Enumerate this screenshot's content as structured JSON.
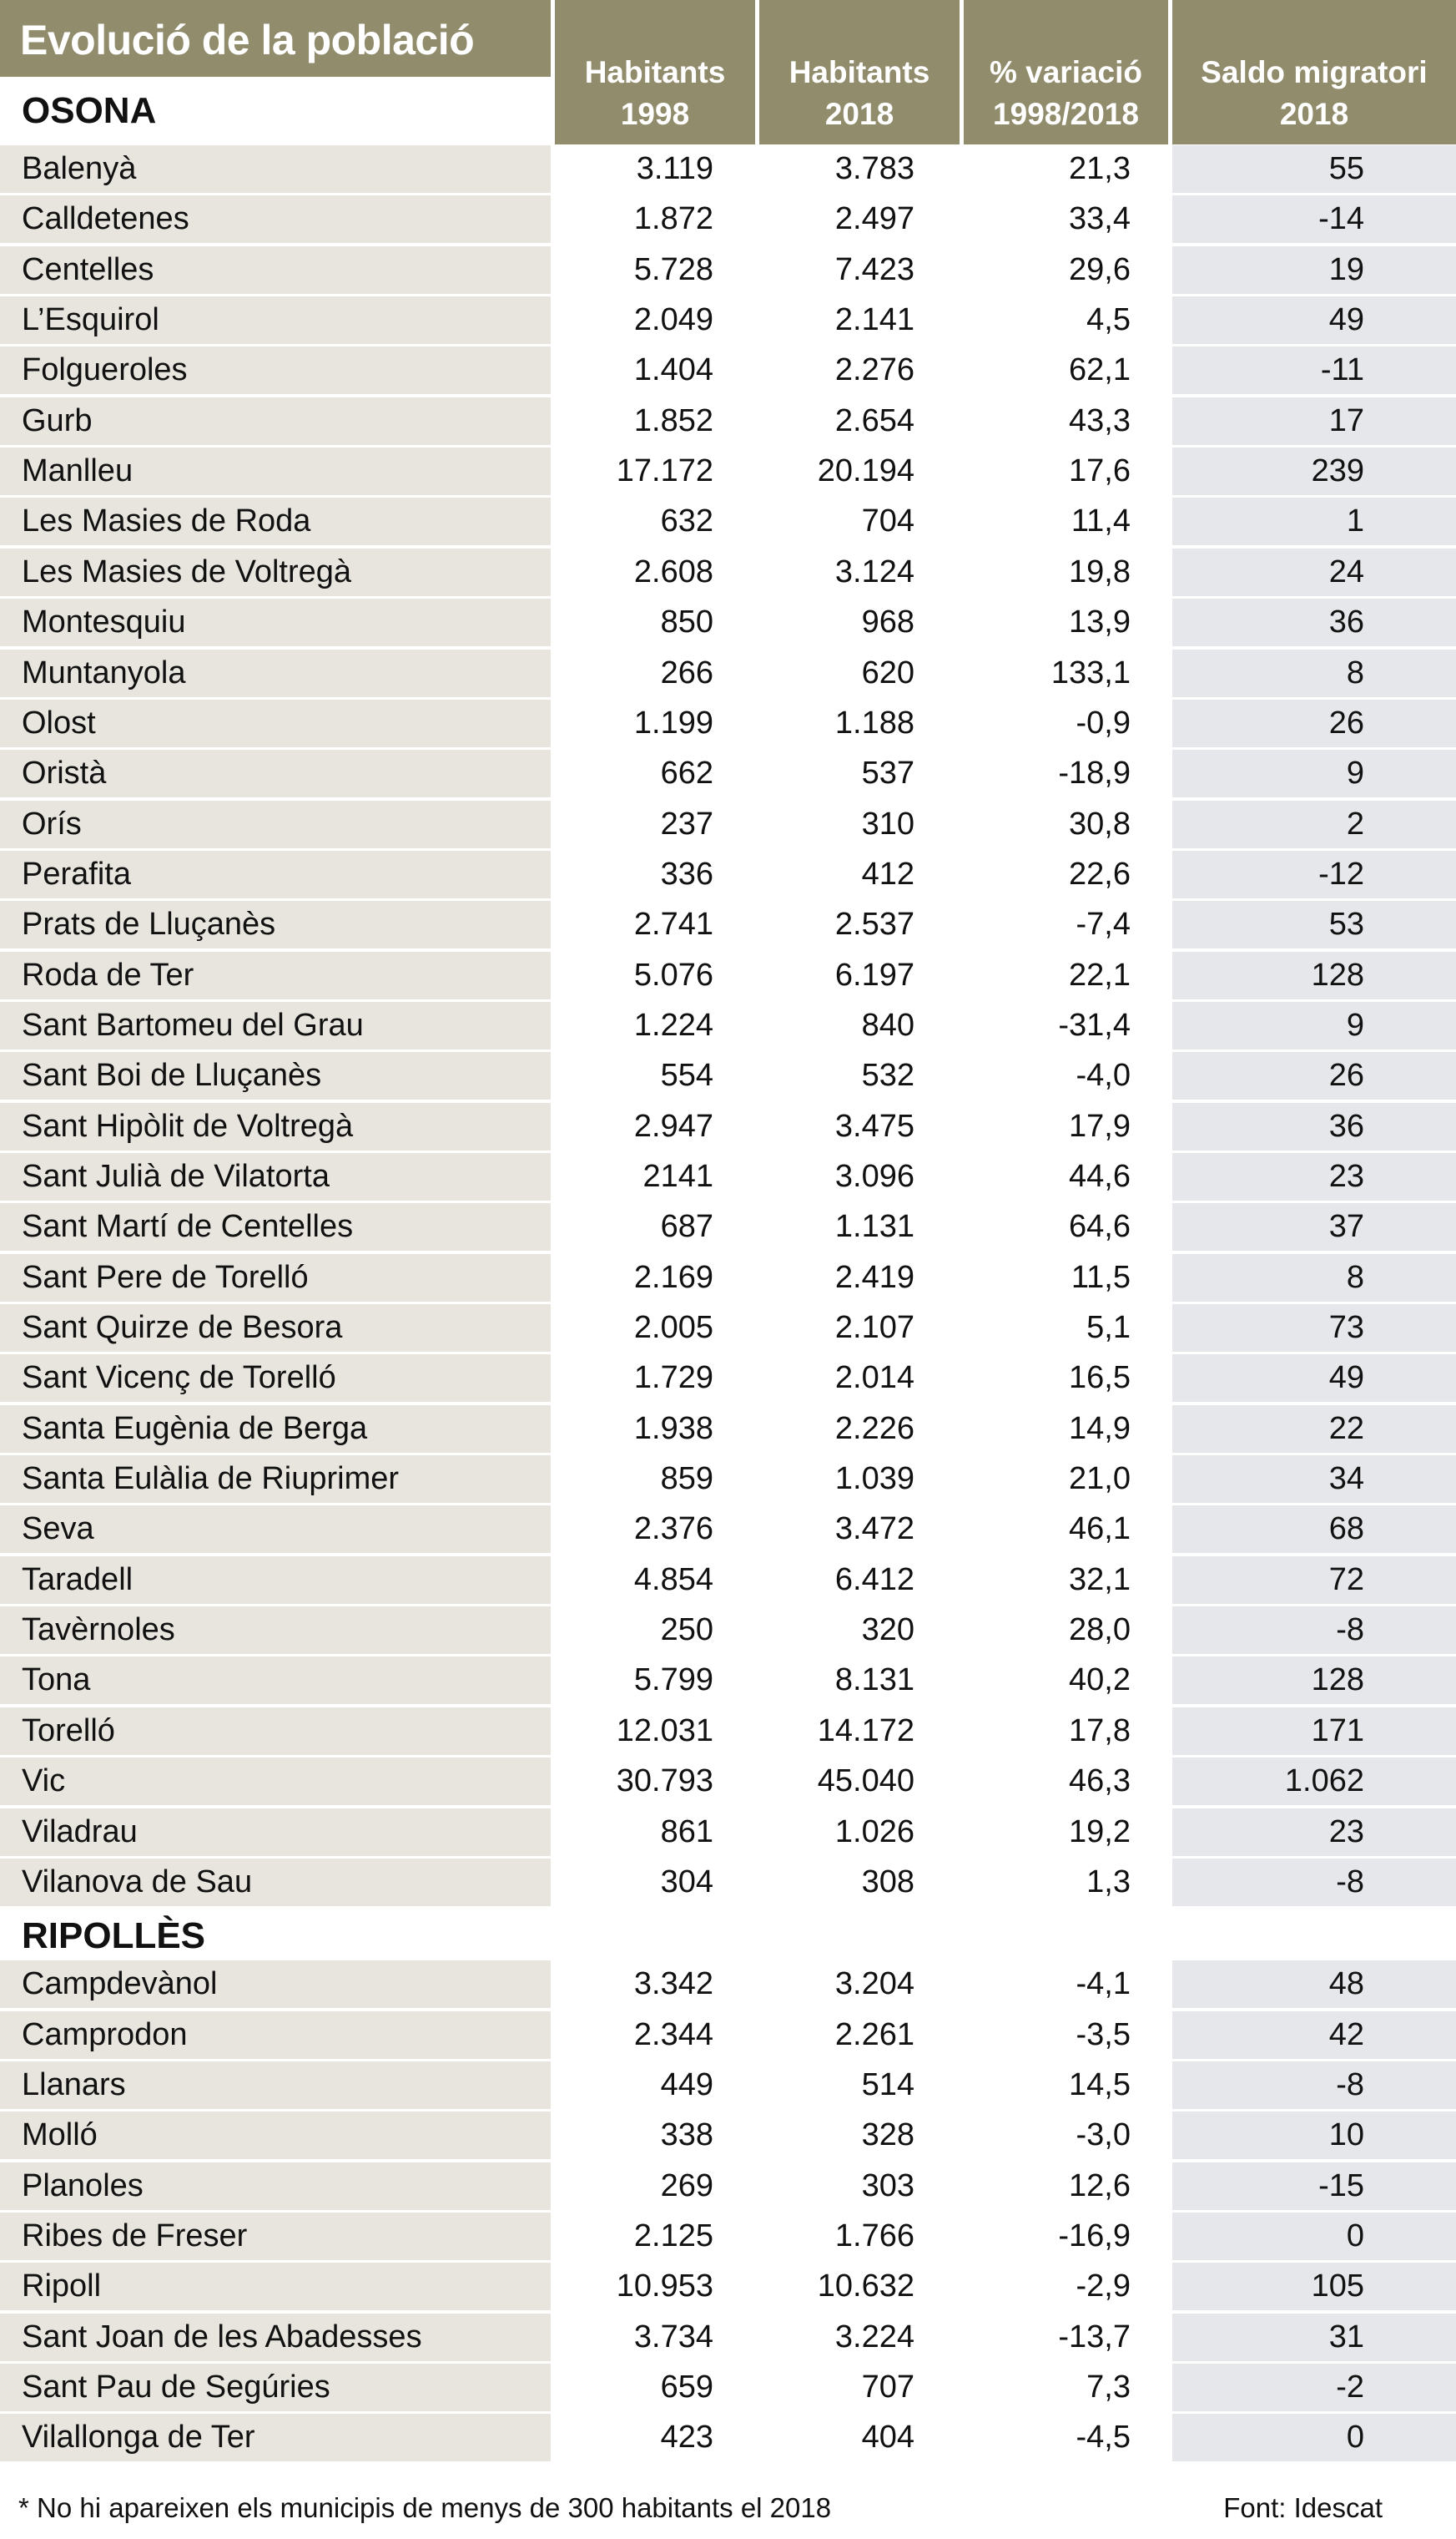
{
  "title": "Evolució de la població",
  "colors": {
    "header": "#918c6c",
    "row_light": "#e7e5dd",
    "migr_light": "#e6e7ea"
  },
  "chart_data": {
    "type": "table",
    "title": "Evolució de la població",
    "columns": [
      {
        "line1": "Habitants",
        "line2": "1998"
      },
      {
        "line1": "Habitants",
        "line2": "2018"
      },
      {
        "line1": "% variació",
        "line2": "1998/2018"
      },
      {
        "line1": "Saldo migratori",
        "line2": "2018"
      }
    ],
    "regions": [
      {
        "name": "OSONA",
        "rows": [
          [
            "Balenyà",
            "3.119",
            "3.783",
            "21,3",
            "55"
          ],
          [
            "Calldetenes",
            "1.872",
            "2.497",
            "33,4",
            "-14"
          ],
          [
            "Centelles",
            "5.728",
            "7.423",
            "29,6",
            "19"
          ],
          [
            "L’Esquirol",
            "2.049",
            "2.141",
            "4,5",
            "49"
          ],
          [
            "Folgueroles",
            "1.404",
            "2.276",
            "62,1",
            "-11"
          ],
          [
            "Gurb",
            "1.852",
            "2.654",
            "43,3",
            "17"
          ],
          [
            "Manlleu",
            "17.172",
            "20.194",
            "17,6",
            "239"
          ],
          [
            "Les Masies de Roda",
            "632",
            "704",
            "11,4",
            "1"
          ],
          [
            "Les Masies de Voltregà",
            "2.608",
            "3.124",
            "19,8",
            "24"
          ],
          [
            "Montesquiu",
            "850",
            "968",
            "13,9",
            "36"
          ],
          [
            "Muntanyola",
            "266",
            "620",
            "133,1",
            "8"
          ],
          [
            "Olost",
            "1.199",
            "1.188",
            "-0,9",
            "26"
          ],
          [
            "Oristà",
            "662",
            "537",
            "-18,9",
            "9"
          ],
          [
            "Orís",
            "237",
            "310",
            "30,8",
            "2"
          ],
          [
            "Perafita",
            "336",
            "412",
            "22,6",
            "-12"
          ],
          [
            "Prats de Lluçanès",
            "2.741",
            "2.537",
            "-7,4",
            "53"
          ],
          [
            "Roda de Ter",
            "5.076",
            "6.197",
            "22,1",
            "128"
          ],
          [
            "Sant Bartomeu del Grau",
            "1.224",
            "840",
            "-31,4",
            "9"
          ],
          [
            "Sant Boi de Lluçanès",
            "554",
            "532",
            "-4,0",
            "26"
          ],
          [
            "Sant Hipòlit de Voltregà",
            "2.947",
            "3.475",
            "17,9",
            "36"
          ],
          [
            "Sant Julià de Vilatorta",
            "2141",
            "3.096",
            "44,6",
            "23"
          ],
          [
            "Sant Martí de Centelles",
            "687",
            "1.131",
            "64,6",
            "37"
          ],
          [
            "Sant Pere de Torelló",
            "2.169",
            "2.419",
            "11,5",
            "8"
          ],
          [
            "Sant Quirze de Besora",
            "2.005",
            "2.107",
            "5,1",
            "73"
          ],
          [
            "Sant Vicenç de Torelló",
            "1.729",
            "2.014",
            "16,5",
            "49"
          ],
          [
            "Santa Eugènia de Berga",
            "1.938",
            "2.226",
            "14,9",
            "22"
          ],
          [
            "Santa Eulàlia de Riuprimer",
            "859",
            "1.039",
            "21,0",
            "34"
          ],
          [
            "Seva",
            "2.376",
            "3.472",
            "46,1",
            "68"
          ],
          [
            "Taradell",
            "4.854",
            "6.412",
            "32,1",
            "72"
          ],
          [
            "Tavèrnoles",
            "250",
            "320",
            "28,0",
            "-8"
          ],
          [
            "Tona",
            "5.799",
            "8.131",
            "40,2",
            "128"
          ],
          [
            "Torelló",
            "12.031",
            "14.172",
            "17,8",
            "171"
          ],
          [
            "Vic",
            "30.793",
            "45.040",
            "46,3",
            "1.062"
          ],
          [
            "Viladrau",
            "861",
            "1.026",
            "19,2",
            "23"
          ],
          [
            "Vilanova de Sau",
            "304",
            "308",
            "1,3",
            "-8"
          ]
        ]
      },
      {
        "name": "RIPOLLÈS",
        "rows": [
          [
            "Campdevànol",
            "3.342",
            "3.204",
            "-4,1",
            "48"
          ],
          [
            "Camprodon",
            "2.344",
            "2.261",
            "-3,5",
            "42"
          ],
          [
            "Llanars",
            "449",
            "514",
            "14,5",
            "-8"
          ],
          [
            "Molló",
            "338",
            "328",
            "-3,0",
            "10"
          ],
          [
            "Planoles",
            "269",
            "303",
            "12,6",
            "-15"
          ],
          [
            "Ribes de Freser",
            "2.125",
            "1.766",
            "-16,9",
            "0"
          ],
          [
            "Ripoll",
            "10.953",
            "10.632",
            "-2,9",
            "105"
          ],
          [
            "Sant Joan de les Abadesses",
            "3.734",
            "3.224",
            "-13,7",
            "31"
          ],
          [
            "Sant Pau de Segúries",
            "659",
            "707",
            "7,3",
            "-2"
          ],
          [
            "Vilallonga de Ter",
            "423",
            "404",
            "-4,5",
            "0"
          ]
        ]
      }
    ]
  },
  "footnote": "* No hi apareixen els municipis de menys de 300 habitants el 2018",
  "source": "Font: Idescat"
}
